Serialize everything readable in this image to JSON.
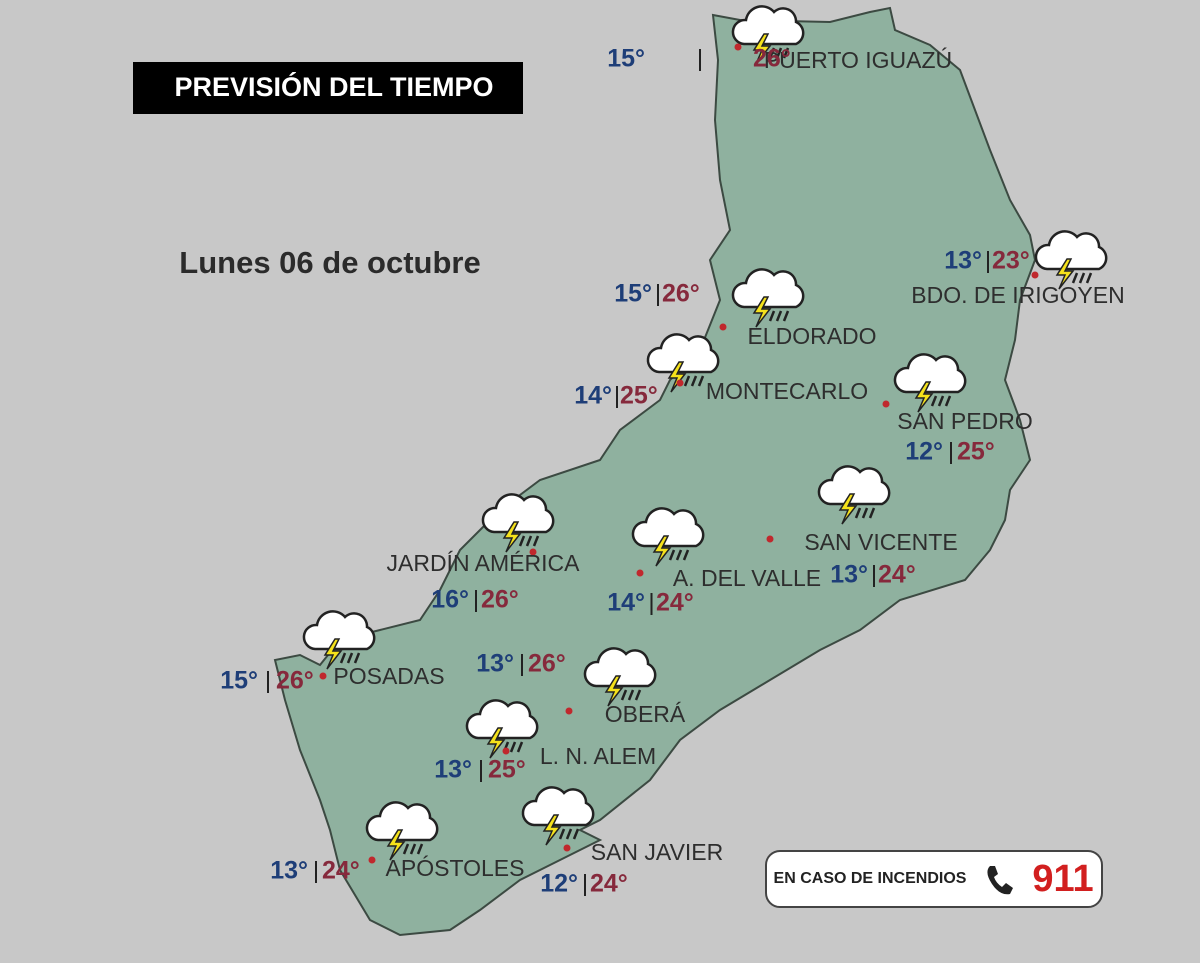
{
  "header": {
    "title": "PREVISIÓN DEL TIEMPO",
    "date": "Lunes 06 de octubre"
  },
  "cities": [
    {
      "name": "PUERTO IGUAZÚ",
      "min": "15°",
      "max": "26°"
    },
    {
      "name": "BDO. DE IRIGOYEN",
      "min": "13°",
      "max": "23°"
    },
    {
      "name": "ELDORADO",
      "min": "15°",
      "max": "26°"
    },
    {
      "name": "MONTECARLO",
      "min": "14°",
      "max": "25°"
    },
    {
      "name": "SAN PEDRO",
      "min": "12°",
      "max": "25°"
    },
    {
      "name": "SAN VICENTE",
      "min": "13°",
      "max": "24°"
    },
    {
      "name": "JARDÍN AMÉRICA",
      "min": "16°",
      "max": "26°"
    },
    {
      "name": "A. DEL VALLE",
      "min": "14°",
      "max": "24°"
    },
    {
      "name": "POSADAS",
      "min": "15°",
      "max": "26°"
    },
    {
      "name": "OBERÁ",
      "min": "13°",
      "max": "26°"
    },
    {
      "name": "L. N. ALEM",
      "min": "13°",
      "max": "25°"
    },
    {
      "name": "SAN JAVIER",
      "min": "12°",
      "max": "24°"
    },
    {
      "name": "APÓSTOLES",
      "min": "13°",
      "max": "24°"
    }
  ],
  "footer": {
    "label": "EN CASO DE INCENDIOS",
    "number": "911"
  }
}
